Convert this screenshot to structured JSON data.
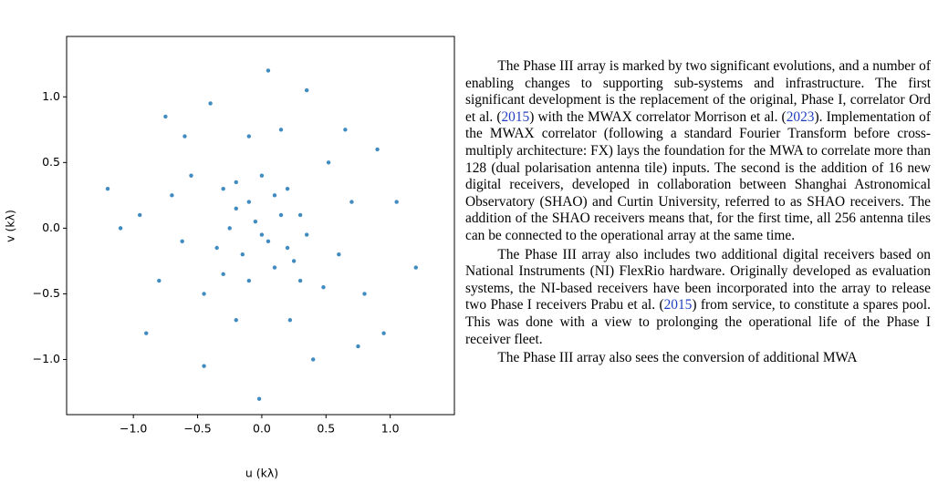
{
  "chart_data": {
    "type": "scatter",
    "xlabel": "u (kλ)",
    "ylabel": "v (kλ)",
    "color": "#1f77b4",
    "xlim": [
      -1.52,
      1.5
    ],
    "ylim": [
      -1.42,
      1.46
    ],
    "xticks": [
      {
        "value": -1.0,
        "label": "−1.0"
      },
      {
        "value": -0.5,
        "label": "−0.5"
      },
      {
        "value": 0.0,
        "label": "0.0"
      },
      {
        "value": 0.5,
        "label": "0.5"
      },
      {
        "value": 1.0,
        "label": "1.0"
      }
    ],
    "yticks": [
      {
        "value": -1.0,
        "label": "−1.0"
      },
      {
        "value": -0.5,
        "label": "−0.5"
      },
      {
        "value": 0.0,
        "label": "0.0"
      },
      {
        "value": 0.5,
        "label": "0.5"
      },
      {
        "value": 1.0,
        "label": "1.0"
      }
    ],
    "x": [
      -0.3,
      -0.2,
      -0.1,
      0,
      0.1,
      0.2,
      0.3,
      -0.25,
      -0.05,
      0.15,
      0.35,
      -0.35,
      -0.15,
      0.05,
      0.25,
      -0.3,
      -0.1,
      0.1,
      0.3,
      -0.2,
      0,
      0.2,
      -0.55,
      -0.62,
      -0.45,
      0.52,
      0.6,
      0.48,
      -0.1,
      0.15,
      -0.2,
      0.22,
      0.7,
      -0.7,
      0.8,
      -0.8,
      0.9,
      -0.95,
      0.35,
      -0.4,
      1.05,
      -1.1,
      0.65,
      -0.6,
      0.05,
      -0.02,
      1.2,
      -1.2,
      0.95,
      -0.9,
      0.4,
      -0.45,
      0.75,
      -0.75
    ],
    "y": [
      0.3,
      0.35,
      0.2,
      0.4,
      0.25,
      0.3,
      0.1,
      0.0,
      0.05,
      0.1,
      -0.05,
      -0.15,
      -0.2,
      -0.1,
      -0.25,
      -0.35,
      -0.4,
      -0.3,
      -0.4,
      0.15,
      -0.05,
      -0.15,
      0.4,
      -0.1,
      -0.5,
      0.5,
      -0.2,
      -0.45,
      0.7,
      0.75,
      -0.7,
      -0.7,
      0.2,
      0.25,
      -0.5,
      -0.4,
      0.6,
      0.1,
      1.05,
      0.95,
      0.2,
      0.0,
      0.75,
      0.7,
      1.2,
      -1.3,
      -0.3,
      0.3,
      -0.8,
      -0.8,
      -1.0,
      -1.05,
      -0.9,
      0.85
    ]
  },
  "text": {
    "paragraphs": [
      [
        "The Phase III array is marked by two significant evolutions, and a number of enabling changes to supporting sub-systems and infrastructure. The first significant development is the replacement of the original, Phase I, correlator Ord et al. (",
        "2015",
        ") with the MWAX correlator Morrison et al. (",
        "2023",
        "). Implementation of the MWAX correlator (following a standard Fourier Transform before cross-multiply architecture: FX) lays the foundation for the MWA to correlate more than 128 (dual polarisation antenna tile) inputs. The second is the addition of 16 new digital receivers, developed in collaboration between Shanghai Astronomical Observatory (SHAO) and Curtin University, referred to as SHAO receivers. The addition of the SHAO receivers means that, for the first time, all 256 antenna tiles can be connected to the operational array at the same time."
      ],
      [
        "The Phase III array also includes two additional digital receivers based on National Instruments (NI) FlexRio hardware. Originally developed as evaluation systems, the NI-based receivers have been incorporated into the array to release two Phase I receivers Prabu et al. (",
        "2015",
        ") from service, to constitute a spares pool. This was done with a view to prolonging the operational life of the Phase I receiver fleet."
      ],
      [
        "The Phase III array also sees the conversion of additional MWA"
      ]
    ]
  }
}
